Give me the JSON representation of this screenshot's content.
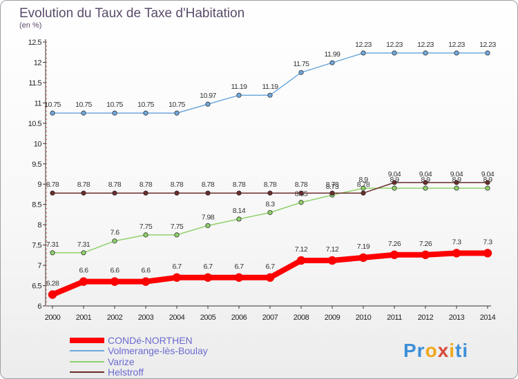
{
  "chart_data": {
    "type": "line",
    "title": "Evolution du Taux de Taxe d'Habitation",
    "subtitle": "(en %)",
    "x": [
      "2000",
      "2001",
      "2002",
      "2003",
      "2004",
      "2005",
      "2006",
      "2007",
      "2008",
      "2009",
      "2010",
      "2011",
      "2012",
      "2013",
      "2014"
    ],
    "ylim": [
      6,
      12.5
    ],
    "yticks": [
      "6",
      "6.5",
      "7",
      "7.5",
      "8",
      "8.5",
      "9",
      "9.5",
      "10",
      "10.5",
      "11",
      "11.5",
      "12",
      "12.5"
    ],
    "grid": false,
    "legend_position": "bottom-left",
    "series": [
      {
        "name": "CONDé-NORTHEN",
        "color": "#ff0000",
        "values": [
          6.28,
          6.6,
          6.6,
          6.6,
          6.7,
          6.7,
          6.7,
          6.7,
          7.12,
          7.12,
          7.19,
          7.26,
          7.26,
          7.3,
          7.3
        ],
        "labels": [
          "6.28",
          "6.6",
          "6.6",
          "6.6",
          "6.7",
          "6.7",
          "6.7",
          "6.7",
          "7.12",
          "7.12",
          "7.19",
          "7.26",
          "7.26",
          "7.3",
          "7.3"
        ]
      },
      {
        "name": "Volmerange-lès-Boulay",
        "color": "#6fa8dc",
        "values": [
          10.75,
          10.75,
          10.75,
          10.75,
          10.75,
          10.97,
          11.19,
          11.19,
          11.75,
          11.99,
          12.23,
          12.23,
          12.23,
          12.23,
          12.23
        ],
        "labels": [
          "10.75",
          "10.75",
          "10.75",
          "10.75",
          "10.75",
          "10.97",
          "11.19",
          "11.19",
          "11.75",
          "11.99",
          "12.23",
          "12.23",
          "12.23",
          "12.23",
          "12.23"
        ]
      },
      {
        "name": "Varize",
        "color": "#8fd16a",
        "values": [
          7.31,
          7.31,
          7.6,
          7.75,
          7.75,
          7.98,
          8.14,
          8.3,
          8.55,
          8.73,
          8.9,
          8.9,
          8.9,
          8.9,
          8.9
        ],
        "labels": [
          "7.31",
          "7.31",
          "7.6",
          "7.75",
          "7.75",
          "7.98",
          "8.14",
          "8.3",
          "8.55",
          "8.73",
          "8.9",
          "8.9",
          "8.9",
          "8.9",
          "8.9"
        ]
      },
      {
        "name": "Helstroff",
        "color": "#6b2b2b",
        "values": [
          8.78,
          8.78,
          8.78,
          8.78,
          8.78,
          8.78,
          8.78,
          8.78,
          8.78,
          8.78,
          8.78,
          9.04,
          9.04,
          9.04,
          9.04
        ],
        "labels": [
          "8.78",
          "8.78",
          "8.78",
          "8.78",
          "8.78",
          "8.78",
          "8.78",
          "8.78",
          "8.78",
          "8.78",
          "8.78",
          "9.04",
          "9.04",
          "9.04",
          "9.04"
        ]
      }
    ]
  },
  "logo": {
    "text_parts": [
      "Pr",
      "o",
      "x",
      "i",
      "ti"
    ]
  }
}
